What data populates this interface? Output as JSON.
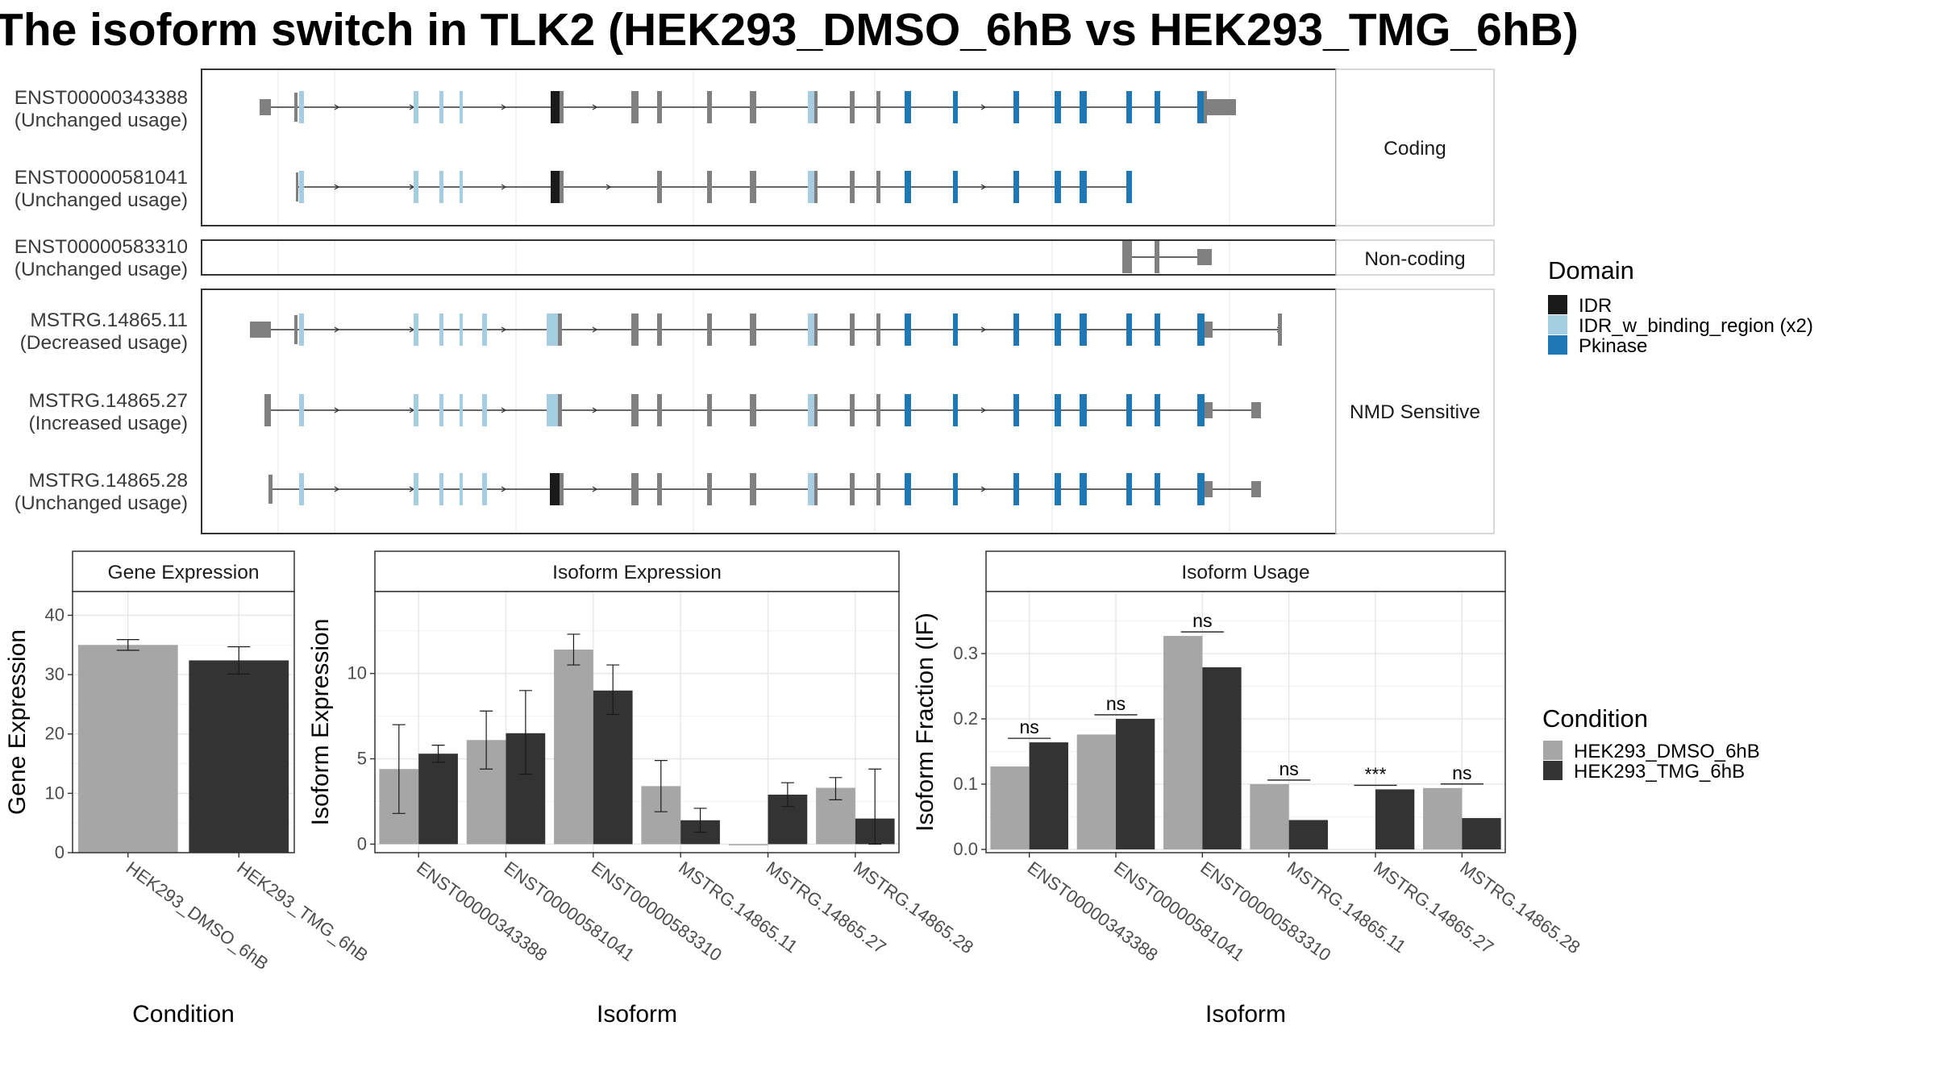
{
  "title": "The isoform switch in TLK2 (HEK293_DMSO_6hB vs HEK293_TMG_6hB)",
  "colors": {
    "IDR": "#1a1a1a",
    "IDR_w_binding_region": "#a6cee3",
    "Pkinase": "#1f78b4",
    "exon": "#808080",
    "DMSO": "#a6a6a6",
    "TMG": "#333333"
  },
  "transcripts": [
    {
      "id": "ENST00000343388",
      "usage": "(Unchanged usage)",
      "category": "Coding"
    },
    {
      "id": "ENST00000581041",
      "usage": "(Unchanged usage)",
      "category": "Coding"
    },
    {
      "id": "ENST00000583310",
      "usage": "(Unchanged usage)",
      "category": "Non-coding"
    },
    {
      "id": "MSTRG.14865.11",
      "usage": "(Decreased usage)",
      "category": "NMD Sensitive"
    },
    {
      "id": "MSTRG.14865.27",
      "usage": "(Increased usage)",
      "category": "NMD Sensitive"
    },
    {
      "id": "MSTRG.14865.28",
      "usage": "(Unchanged usage)",
      "category": "NMD Sensitive"
    }
  ],
  "categories": [
    "Coding",
    "Non-coding",
    "NMD Sensitive"
  ],
  "domain_legend": {
    "title": "Domain",
    "items": [
      {
        "label": "IDR",
        "color": "#1a1a1a"
      },
      {
        "label": "IDR_w_binding_region (x2)",
        "color": "#a6cee3"
      },
      {
        "label": "Pkinase",
        "color": "#1f78b4"
      }
    ]
  },
  "condition_legend": {
    "title": "Condition",
    "items": [
      {
        "label": "HEK293_DMSO_6hB",
        "color": "#a6a6a6"
      },
      {
        "label": "HEK293_TMG_6hB",
        "color": "#333333"
      }
    ]
  },
  "chart_data": [
    {
      "type": "bar",
      "title": "Gene Expression",
      "xlabel": "Condition",
      "ylabel": "Gene Expression",
      "categories": [
        "HEK293_DMSO_6hB",
        "HEK293_TMG_6hB"
      ],
      "values": [
        35.0,
        32.4
      ],
      "errors": [
        [
          34.1,
          35.9
        ],
        [
          30.1,
          34.7
        ]
      ],
      "ylim": [
        0,
        44
      ],
      "yticks": [
        0,
        10,
        20,
        30,
        40
      ]
    },
    {
      "type": "bar",
      "title": "Isoform Expression",
      "xlabel": "Isoform",
      "ylabel": "Isoform Expression",
      "categories": [
        "ENST00000343388",
        "ENST00000581041",
        "ENST00000583310",
        "MSTRG.14865.11",
        "MSTRG.14865.27",
        "MSTRG.14865.28"
      ],
      "series": [
        {
          "name": "HEK293_DMSO_6hB",
          "values": [
            4.4,
            6.1,
            11.4,
            3.4,
            0.0,
            3.3
          ],
          "errors": [
            [
              1.8,
              7.0
            ],
            [
              4.4,
              7.8
            ],
            [
              10.5,
              12.3
            ],
            [
              1.9,
              4.9
            ],
            [
              0.0,
              0.0
            ],
            [
              2.6,
              3.9
            ]
          ]
        },
        {
          "name": "HEK293_TMG_6hB",
          "values": [
            5.3,
            6.5,
            9.0,
            1.4,
            2.9,
            1.5
          ],
          "errors": [
            [
              4.8,
              5.8
            ],
            [
              4.1,
              9.0
            ],
            [
              7.6,
              10.5
            ],
            [
              0.7,
              2.1
            ],
            [
              2.2,
              3.6
            ],
            [
              0.0,
              4.4
            ]
          ]
        }
      ],
      "ylim": [
        -0.5,
        14.8
      ],
      "yticks": [
        0,
        5,
        10
      ]
    },
    {
      "type": "bar",
      "title": "Isoform Usage",
      "xlabel": "Isoform",
      "ylabel": "Isoform Fraction (IF)",
      "categories": [
        "ENST00000343388",
        "ENST00000581041",
        "ENST00000583310",
        "MSTRG.14865.11",
        "MSTRG.14865.27",
        "MSTRG.14865.28"
      ],
      "series": [
        {
          "name": "HEK293_DMSO_6hB",
          "values": [
            0.127,
            0.176,
            0.327,
            0.1,
            0.0,
            0.094
          ]
        },
        {
          "name": "HEK293_TMG_6hB",
          "values": [
            0.164,
            0.2,
            0.279,
            0.045,
            0.092,
            0.048
          ]
        }
      ],
      "significance": [
        "ns",
        "ns",
        "ns",
        "ns",
        "***",
        "ns"
      ],
      "ylim": [
        -0.005,
        0.395
      ],
      "yticks": [
        0.0,
        0.1,
        0.2,
        0.3
      ],
      "ytick_labels": [
        "0.0",
        "0.1",
        "0.2",
        "0.3"
      ]
    }
  ]
}
